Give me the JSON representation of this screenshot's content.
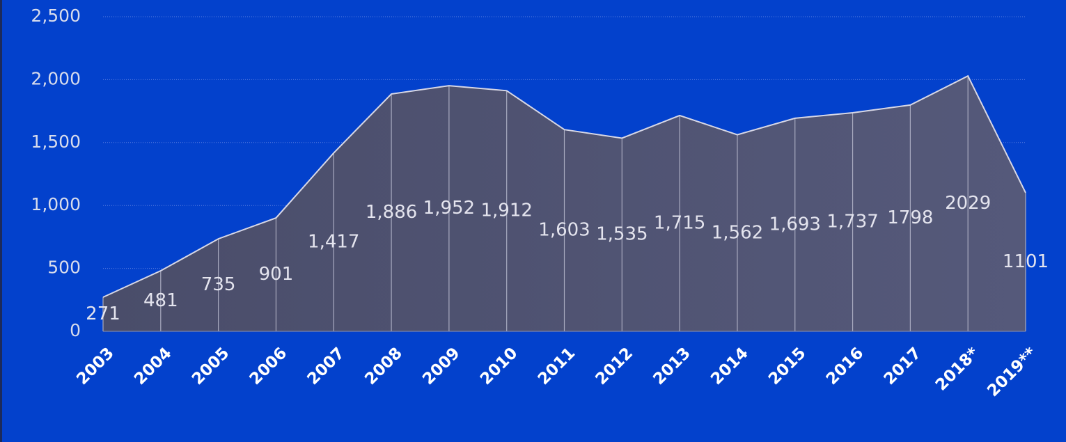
{
  "chart_data": {
    "type": "area",
    "categories": [
      "2003",
      "2004",
      "2005",
      "2006",
      "2007",
      "2008",
      "2009",
      "2010",
      "2011",
      "2012",
      "2013",
      "2014",
      "2015",
      "2016",
      "2017",
      "2018*",
      "2019**"
    ],
    "values": [
      271,
      481,
      735,
      901,
      1417,
      1886,
      1952,
      1912,
      1603,
      1535,
      1715,
      1562,
      1693,
      1737,
      1798,
      2029,
      1101
    ],
    "value_labels": [
      "271",
      "481",
      "735",
      "901",
      "1,417",
      "1,886",
      "1,952",
      "1,912",
      "1,603",
      "1,535",
      "1,715",
      "1,562",
      "1,693",
      "1,737",
      "1798",
      "2029",
      "1101"
    ],
    "color": "#55597a",
    "ylim": [
      0,
      2500
    ],
    "yticks": [
      0,
      500,
      {
        "value": 1000,
        "label": "1,000"
      },
      {
        "value": 1500,
        "label": "1,500"
      },
      {
        "value": 2000,
        "label": "2,000"
      },
      {
        "value": 2500,
        "label": "2,500"
      }
    ],
    "grid": true
  }
}
